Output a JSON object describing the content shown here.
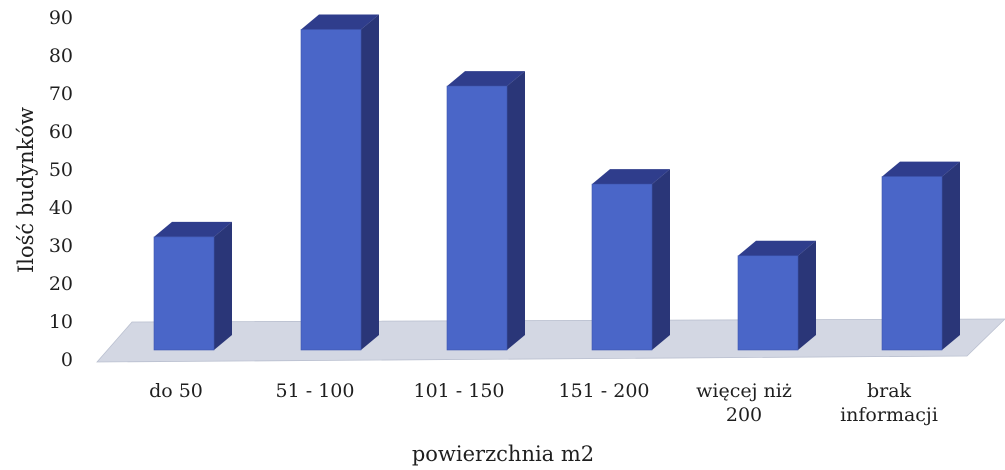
{
  "chart_data": {
    "type": "bar",
    "style": "3d-column",
    "title": "",
    "xlabel": "powierzchnia m2",
    "ylabel": "Ilość budynków",
    "categories": [
      [
        "do 50"
      ],
      [
        "51 - 100"
      ],
      [
        "101 - 150"
      ],
      [
        "151 - 200"
      ],
      [
        "więcej niż",
        "200"
      ],
      [
        "brak",
        "informacji"
      ]
    ],
    "values": [
      30,
      85,
      70,
      44,
      25,
      46
    ],
    "ylim": [
      0,
      90
    ],
    "yticks": [
      0,
      10,
      20,
      30,
      40,
      50,
      60,
      70,
      80,
      90
    ],
    "grid": false,
    "legend": "none",
    "colors": {
      "bar_front": "#4a66c8",
      "bar_side": "#2a3678",
      "bar_top": "#2f3d8c",
      "floor": "#d3d7e3",
      "text": "#1f1f1f"
    }
  }
}
